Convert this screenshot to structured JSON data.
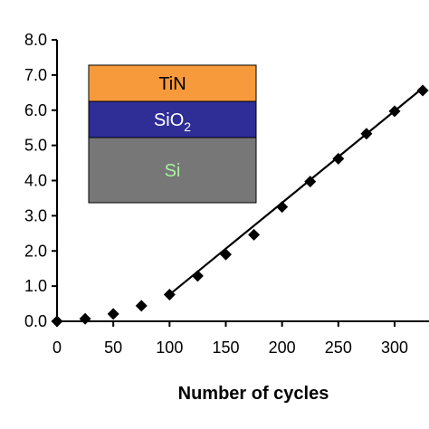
{
  "chart_data": {
    "type": "scatter",
    "title": "",
    "xlabel": "Number of cycles",
    "ylabel": "",
    "xlim": [
      0,
      325
    ],
    "ylim": [
      0,
      8.0
    ],
    "x_ticks": [
      0,
      50,
      100,
      150,
      200,
      250,
      300
    ],
    "y_ticks": [
      0.0,
      1.0,
      2.0,
      3.0,
      4.0,
      5.0,
      6.0,
      7.0,
      8.0
    ],
    "x_tick_labels": [
      "0",
      "50",
      "100",
      "150",
      "200",
      "250",
      "300"
    ],
    "y_tick_labels": [
      "0.0",
      "1.0",
      "2.0",
      "3.0",
      "4.0",
      "5.0",
      "6.0",
      "7.0",
      "8.0"
    ],
    "grid": false,
    "series": [
      {
        "marker": "diamond",
        "color": "#000000",
        "x": [
          0,
          25,
          50,
          75,
          100,
          125,
          150,
          175,
          200,
          225,
          250,
          275,
          300,
          325
        ],
        "y": [
          0.0,
          0.07,
          0.21,
          0.44,
          0.76,
          1.29,
          1.9,
          2.46,
          3.25,
          3.97,
          4.62,
          5.33,
          5.97,
          6.56
        ]
      }
    ],
    "fit_line": {
      "color": "#000000",
      "x": [
        100,
        325
      ],
      "y": [
        0.76,
        6.63
      ]
    },
    "inset": {
      "layers": [
        {
          "label": "TiN",
          "fill": "#F79A3B",
          "text_color": "#000000"
        },
        {
          "label": "SiO",
          "sub": "2",
          "fill": "#2E2E96",
          "text_color": "#ffffff"
        },
        {
          "label": "Si",
          "fill": "#777777",
          "text_color": "#A8F0A0"
        }
      ]
    }
  }
}
